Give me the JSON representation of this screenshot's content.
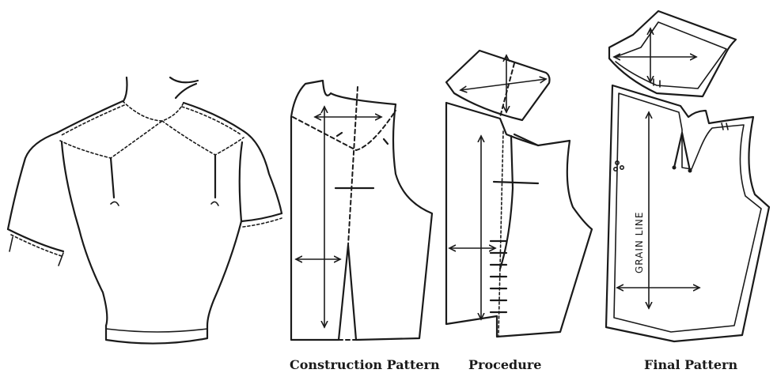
{
  "captions": {
    "construction": "Construction Pattern",
    "procedure": "Procedure",
    "final": "Final Pattern"
  },
  "labels": {
    "grain_line": "GRAIN LINE"
  }
}
